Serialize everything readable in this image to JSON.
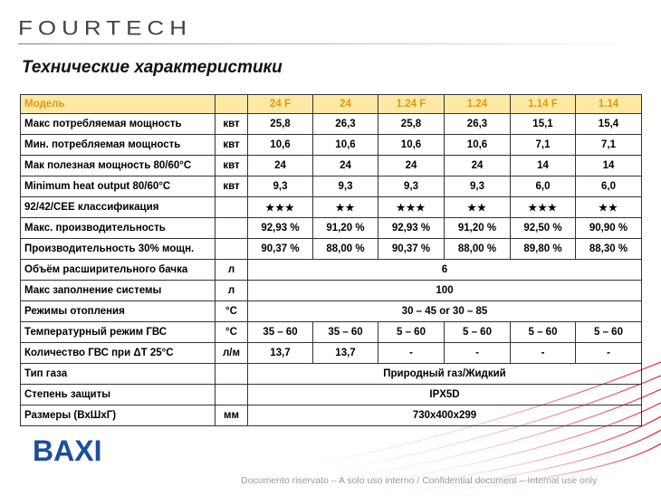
{
  "brand": {
    "fourtech_logo": "FOURTECH",
    "baxi_logo": "BAXI"
  },
  "title": "Технические характеристики",
  "table": {
    "header": {
      "label": "Модель",
      "unit": "",
      "models": [
        "24 F",
        "24",
        "1.24 F",
        "1.24",
        "1.14 F",
        "1.14"
      ]
    },
    "rows": [
      {
        "label": "Макс потребляемая мощность",
        "unit": "квт",
        "values": [
          "25,8",
          "26,3",
          "25,8",
          "26,3",
          "15,1",
          "15,4"
        ]
      },
      {
        "label": "Мин. потребляемая мощность",
        "unit": "квт",
        "values": [
          "10,6",
          "10,6",
          "10,6",
          "10,6",
          "7,1",
          "7,1"
        ]
      },
      {
        "label": "Мак полезная мощность 80/60°C",
        "unit": "квт",
        "values": [
          "24",
          "24",
          "24",
          "24",
          "14",
          "14"
        ]
      },
      {
        "label": "Minimum heat output 80/60°C",
        "unit": "квт",
        "values": [
          "9,3",
          "9,3",
          "9,3",
          "9,3",
          "6,0",
          "6,0"
        ]
      },
      {
        "label": "92/42/CEE классификация",
        "unit": "",
        "values": [
          "★★★",
          "★★",
          "★★★",
          "★★",
          "★★★",
          "★★"
        ]
      },
      {
        "label": "Макс. производительность",
        "unit": "",
        "values": [
          "92,93 %",
          "91,20 %",
          "92,93 %",
          "91,20 %",
          "92,50 %",
          "90,90 %"
        ]
      },
      {
        "label": "Производительность 30% мощн.",
        "unit": "",
        "values": [
          "90,37 %",
          "88,00 %",
          "90,37 %",
          "88,00 %",
          "89,80 %",
          "88,30 %"
        ]
      },
      {
        "label": "Объём расширительного бачка",
        "unit": "л",
        "merged": "6"
      },
      {
        "label": "Макс заполнение системы",
        "unit": "л",
        "merged": "100"
      },
      {
        "label": "Режимы отопления",
        "unit": "°C",
        "merged": "30 – 45 or 30 – 85"
      },
      {
        "label": "Температурный режим ГВС",
        "unit": "°C",
        "values": [
          "35 – 60",
          "35 – 60",
          "5 – 60",
          "5 – 60",
          "5 – 60",
          "5 – 60"
        ]
      },
      {
        "label": "Количество ГВС при ΔT 25°C",
        "unit": "л/м",
        "values": [
          "13,7",
          "13,7",
          "-",
          "-",
          "-",
          "-"
        ]
      },
      {
        "label": "Тип газа",
        "unit": "",
        "merged": "Природный газ/Жидкий"
      },
      {
        "label": "Степень защиты",
        "unit": "",
        "merged": "IPX5D"
      },
      {
        "label": "Размеры (ВхШхГ)",
        "unit": "мм",
        "merged": "730x400x299"
      }
    ]
  },
  "footer": "Documento riservato – A solo uso interno / Confidential document – Internal use only",
  "colors": {
    "header_row_bg": "#fce9a6",
    "header_row_text": "#e09a10",
    "baxi_blue": "#1c4e9c",
    "swoosh_red": "#d9001b"
  }
}
